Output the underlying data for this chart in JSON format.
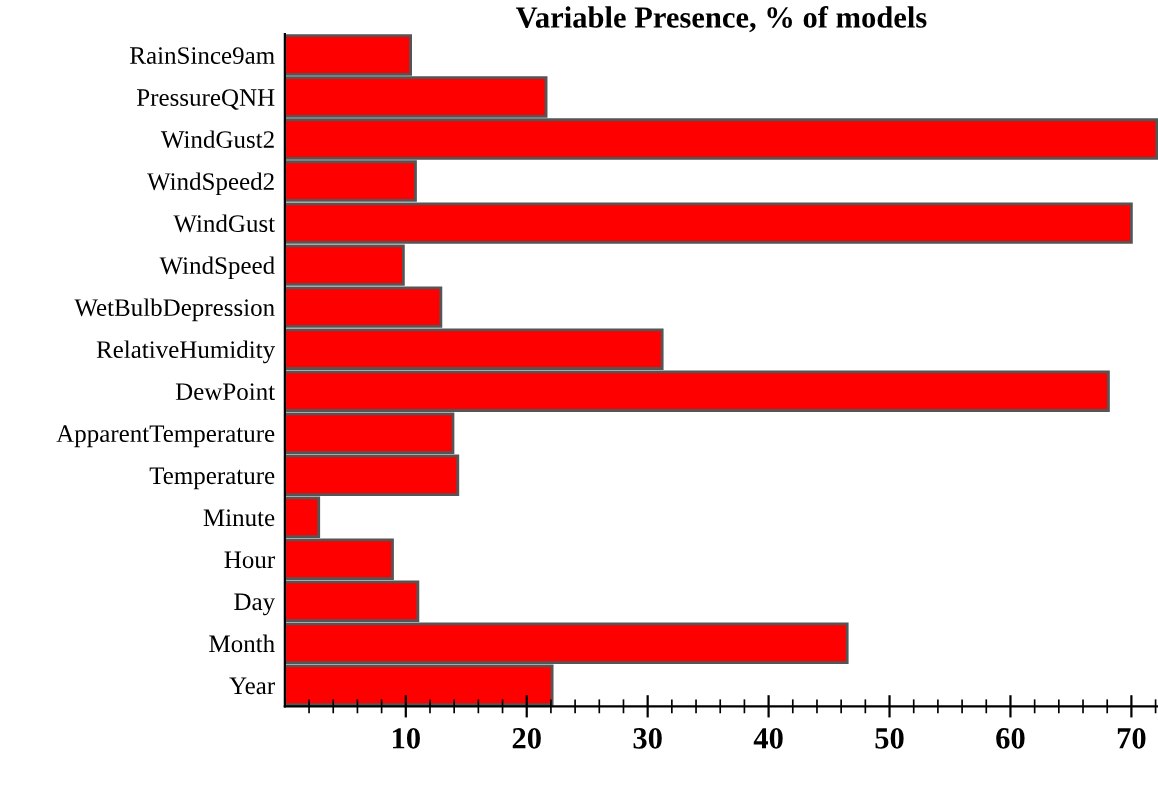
{
  "chart_data": {
    "type": "bar",
    "orientation": "horizontal",
    "title": "Variable Presence, % of models",
    "categories": [
      "RainSince9am",
      "PressureQNH",
      "WindGust2",
      "WindSpeed2",
      "WindGust",
      "WindSpeed",
      "WetBulbDepression",
      "RelativeHumidity",
      "DewPoint",
      "ApparentTemperature",
      "Temperature",
      "Minute",
      "Hour",
      "Day",
      "Month",
      "Year"
    ],
    "values": [
      10.4,
      21.6,
      72.1,
      10.8,
      70.0,
      9.8,
      12.9,
      31.2,
      68.1,
      13.9,
      14.3,
      2.8,
      8.9,
      11.0,
      46.5,
      22.1
    ],
    "color": "#ff0000",
    "xlim": [
      0,
      72.2
    ],
    "xticks": [
      {
        "value": 2,
        "label": null
      },
      {
        "value": 4,
        "label": null
      },
      {
        "value": 6,
        "label": null
      },
      {
        "value": 8,
        "label": null
      },
      10,
      {
        "value": 12,
        "label": null
      },
      {
        "value": 14,
        "label": null
      },
      {
        "value": 16,
        "label": null
      },
      {
        "value": 18,
        "label": null
      },
      20,
      {
        "value": 22,
        "label": null
      },
      {
        "value": 24,
        "label": null
      },
      {
        "value": 26,
        "label": null
      },
      {
        "value": 28,
        "label": null
      },
      30,
      {
        "value": 32,
        "label": null
      },
      {
        "value": 34,
        "label": null
      },
      {
        "value": 36,
        "label": null
      },
      {
        "value": 38,
        "label": null
      },
      40,
      {
        "value": 42,
        "label": null
      },
      {
        "value": 44,
        "label": null
      },
      {
        "value": 46,
        "label": null
      },
      {
        "value": 48,
        "label": null
      },
      50,
      {
        "value": 52,
        "label": null
      },
      {
        "value": 54,
        "label": null
      },
      {
        "value": 56,
        "label": null
      },
      {
        "value": 58,
        "label": null
      },
      60,
      {
        "value": 62,
        "label": null
      },
      {
        "value": 64,
        "label": null
      },
      {
        "value": 66,
        "label": null
      },
      {
        "value": 68,
        "label": null
      },
      70,
      {
        "value": 72,
        "label": null
      }
    ],
    "grid": false
  }
}
